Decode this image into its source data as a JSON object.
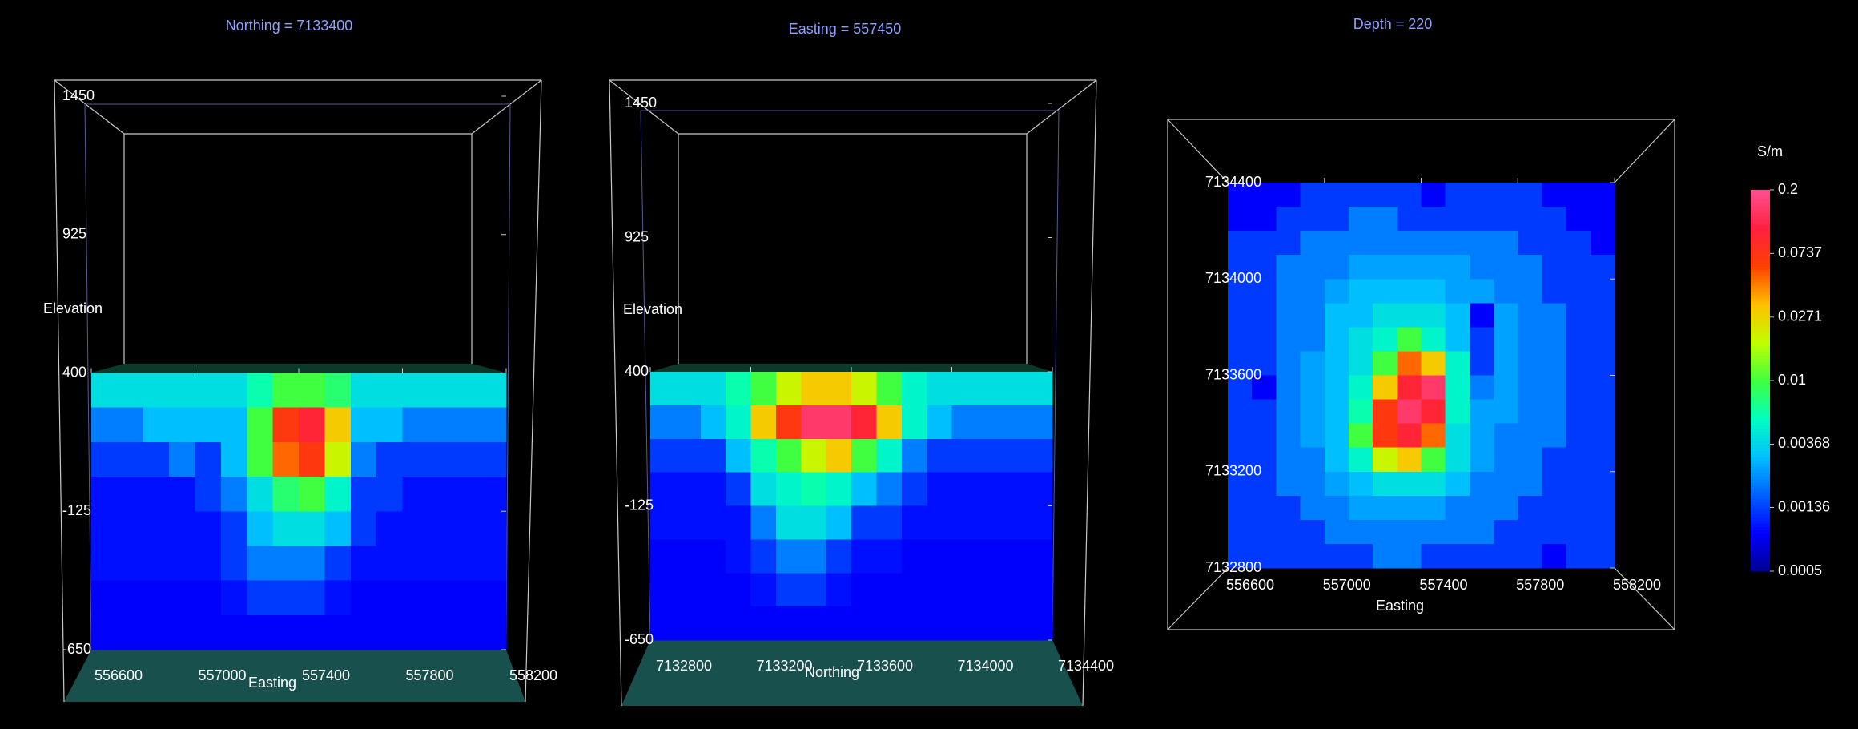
{
  "chart_data": [
    {
      "type": "heatmap",
      "title": "Northing =  7133400",
      "ylabel": "Elevation",
      "xlabel": "Easting",
      "xlim": [
        556600,
        558200
      ],
      "xticks": [
        556600,
        557000,
        557400,
        557800,
        558200
      ],
      "ylim": [
        -650,
        1450
      ],
      "yticks": [
        1450,
        925,
        400,
        -125,
        -650
      ],
      "data_ylim": [
        -650,
        400
      ],
      "z": [
        [
          0.004,
          0.004,
          0.004,
          0.004,
          0.004,
          0.004,
          0.006,
          0.01,
          0.01,
          0.008,
          0.004,
          0.004,
          0.004,
          0.004,
          0.004,
          0.004
        ],
        [
          0.002,
          0.002,
          0.003,
          0.003,
          0.003,
          0.003,
          0.01,
          0.07,
          0.1,
          0.03,
          0.003,
          0.003,
          0.002,
          0.002,
          0.002,
          0.002
        ],
        [
          0.0013,
          0.0013,
          0.0013,
          0.002,
          0.0013,
          0.003,
          0.01,
          0.05,
          0.07,
          0.02,
          0.002,
          0.0013,
          0.0013,
          0.0013,
          0.0013,
          0.0013
        ],
        [
          0.001,
          0.001,
          0.001,
          0.001,
          0.0013,
          0.002,
          0.004,
          0.008,
          0.01,
          0.005,
          0.0013,
          0.0013,
          0.001,
          0.001,
          0.001,
          0.001
        ],
        [
          0.001,
          0.001,
          0.001,
          0.001,
          0.001,
          0.0013,
          0.003,
          0.004,
          0.004,
          0.003,
          0.0013,
          0.001,
          0.001,
          0.001,
          0.001,
          0.001
        ],
        [
          0.001,
          0.001,
          0.001,
          0.001,
          0.001,
          0.0013,
          0.002,
          0.002,
          0.002,
          0.0013,
          0.001,
          0.001,
          0.001,
          0.001,
          0.001,
          0.001
        ],
        [
          0.0009,
          0.0009,
          0.0009,
          0.0009,
          0.0009,
          0.001,
          0.0013,
          0.0013,
          0.0013,
          0.001,
          0.0009,
          0.0009,
          0.0009,
          0.0009,
          0.0009,
          0.0009
        ],
        [
          0.0009,
          0.0009,
          0.0009,
          0.0009,
          0.0009,
          0.0009,
          0.0009,
          0.0009,
          0.0009,
          0.0009,
          0.0009,
          0.0009,
          0.0009,
          0.0009,
          0.0009,
          0.0009
        ]
      ]
    },
    {
      "type": "heatmap",
      "title": "Easting =  557450",
      "ylabel": "Elevation",
      "xlabel": "Northing",
      "xlim": [
        7132800,
        7134400
      ],
      "xticks": [
        7132800,
        7133200,
        7133600,
        7134000,
        7134400
      ],
      "ylim": [
        -650,
        1450
      ],
      "yticks": [
        1450,
        925,
        400,
        -125,
        -650
      ],
      "data_ylim": [
        -650,
        400
      ],
      "z": [
        [
          0.004,
          0.004,
          0.004,
          0.006,
          0.01,
          0.02,
          0.03,
          0.03,
          0.02,
          0.01,
          0.005,
          0.004,
          0.004,
          0.004,
          0.004,
          0.004
        ],
        [
          0.002,
          0.002,
          0.003,
          0.005,
          0.03,
          0.07,
          0.15,
          0.15,
          0.1,
          0.03,
          0.005,
          0.003,
          0.002,
          0.002,
          0.002,
          0.002
        ],
        [
          0.0013,
          0.0013,
          0.0013,
          0.003,
          0.006,
          0.01,
          0.02,
          0.03,
          0.01,
          0.005,
          0.002,
          0.0013,
          0.0013,
          0.0013,
          0.0013,
          0.0013
        ],
        [
          0.001,
          0.001,
          0.001,
          0.0013,
          0.004,
          0.005,
          0.006,
          0.005,
          0.003,
          0.002,
          0.0013,
          0.001,
          0.001,
          0.001,
          0.001,
          0.001
        ],
        [
          0.001,
          0.001,
          0.001,
          0.001,
          0.002,
          0.004,
          0.004,
          0.003,
          0.0013,
          0.0013,
          0.001,
          0.001,
          0.001,
          0.001,
          0.001,
          0.001
        ],
        [
          0.0009,
          0.0009,
          0.0009,
          0.001,
          0.0013,
          0.002,
          0.002,
          0.0013,
          0.001,
          0.001,
          0.0009,
          0.0009,
          0.0009,
          0.0009,
          0.0009,
          0.0009
        ],
        [
          0.0009,
          0.0009,
          0.0009,
          0.0009,
          0.001,
          0.0013,
          0.0013,
          0.001,
          0.0009,
          0.0009,
          0.0009,
          0.0009,
          0.0009,
          0.0009,
          0.0009,
          0.0009
        ],
        [
          0.0009,
          0.0009,
          0.0009,
          0.0009,
          0.0009,
          0.0009,
          0.0009,
          0.0009,
          0.0009,
          0.0009,
          0.0009,
          0.0009,
          0.0009,
          0.0009,
          0.0009,
          0.0009
        ]
      ]
    },
    {
      "type": "heatmap",
      "title": "Depth =  220",
      "xlabel": "Easting",
      "xlim": [
        556600,
        558200
      ],
      "xticks": [
        556600,
        557000,
        557400,
        557800,
        558200
      ],
      "ylim": [
        7132800,
        7134400
      ],
      "yticks": [
        7134400,
        7134000,
        7133600,
        7133200,
        7132800
      ],
      "z": [
        [
          0.0009,
          0.0009,
          0.0009,
          0.0013,
          0.0013,
          0.0013,
          0.0013,
          0.0013,
          0.0009,
          0.0013,
          0.0013,
          0.0013,
          0.0013,
          0.0009,
          0.0009,
          0.0009
        ],
        [
          0.0009,
          0.0009,
          0.0013,
          0.0013,
          0.0013,
          0.002,
          0.002,
          0.0013,
          0.0013,
          0.0013,
          0.0013,
          0.0013,
          0.0013,
          0.0013,
          0.0009,
          0.0009
        ],
        [
          0.0013,
          0.0013,
          0.0013,
          0.002,
          0.002,
          0.002,
          0.002,
          0.002,
          0.002,
          0.002,
          0.002,
          0.002,
          0.0013,
          0.0013,
          0.0013,
          0.0009
        ],
        [
          0.0013,
          0.0013,
          0.002,
          0.002,
          0.002,
          0.0025,
          0.0025,
          0.0025,
          0.0025,
          0.0025,
          0.002,
          0.002,
          0.002,
          0.0013,
          0.0013,
          0.0013
        ],
        [
          0.0013,
          0.0013,
          0.002,
          0.002,
          0.0025,
          0.003,
          0.003,
          0.003,
          0.003,
          0.0025,
          0.0025,
          0.002,
          0.002,
          0.0013,
          0.0013,
          0.0013
        ],
        [
          0.0013,
          0.0013,
          0.002,
          0.002,
          0.003,
          0.003,
          0.004,
          0.004,
          0.004,
          0.003,
          0.0009,
          0.0025,
          0.002,
          0.002,
          0.0013,
          0.0013
        ],
        [
          0.0013,
          0.0013,
          0.002,
          0.002,
          0.003,
          0.004,
          0.005,
          0.01,
          0.005,
          0.003,
          0.0013,
          0.0025,
          0.002,
          0.002,
          0.0013,
          0.0013
        ],
        [
          0.0013,
          0.0013,
          0.002,
          0.0025,
          0.003,
          0.004,
          0.01,
          0.05,
          0.03,
          0.005,
          0.0013,
          0.0025,
          0.002,
          0.002,
          0.0013,
          0.0013
        ],
        [
          0.0013,
          0.0009,
          0.002,
          0.0025,
          0.003,
          0.005,
          0.03,
          0.1,
          0.15,
          0.005,
          0.002,
          0.0025,
          0.002,
          0.002,
          0.0013,
          0.0013
        ],
        [
          0.0013,
          0.0013,
          0.002,
          0.0025,
          0.003,
          0.006,
          0.07,
          0.15,
          0.1,
          0.005,
          0.0025,
          0.0025,
          0.002,
          0.002,
          0.0013,
          0.0013
        ],
        [
          0.0013,
          0.0013,
          0.002,
          0.0025,
          0.003,
          0.01,
          0.07,
          0.1,
          0.05,
          0.004,
          0.0025,
          0.002,
          0.002,
          0.002,
          0.0013,
          0.0013
        ],
        [
          0.0013,
          0.0013,
          0.002,
          0.002,
          0.003,
          0.005,
          0.02,
          0.03,
          0.01,
          0.004,
          0.0025,
          0.002,
          0.002,
          0.0013,
          0.0013,
          0.0013
        ],
        [
          0.0013,
          0.0013,
          0.002,
          0.002,
          0.0025,
          0.003,
          0.004,
          0.004,
          0.004,
          0.003,
          0.002,
          0.002,
          0.002,
          0.0013,
          0.0013,
          0.0013
        ],
        [
          0.0013,
          0.0013,
          0.0013,
          0.002,
          0.002,
          0.0025,
          0.0025,
          0.0025,
          0.0025,
          0.002,
          0.002,
          0.002,
          0.0013,
          0.0013,
          0.0013,
          0.0013
        ],
        [
          0.0013,
          0.0013,
          0.0013,
          0.0013,
          0.002,
          0.002,
          0.002,
          0.002,
          0.002,
          0.002,
          0.002,
          0.0013,
          0.0013,
          0.0013,
          0.0013,
          0.0013
        ],
        [
          0.0013,
          0.0013,
          0.0013,
          0.0013,
          0.0013,
          0.0013,
          0.002,
          0.002,
          0.0013,
          0.0013,
          0.0013,
          0.0013,
          0.0013,
          0.0009,
          0.0013,
          0.0013
        ]
      ]
    },
    {
      "type": "colorbar",
      "label": "S/m",
      "lim": [
        0.0005,
        0.2
      ],
      "log": true,
      "ticks": [
        0.2,
        0.0737,
        0.0271,
        0.01,
        0.00368,
        0.00136,
        0.0005
      ],
      "colors": [
        "#000090",
        "#0000ff",
        "#0060ff",
        "#00c0ff",
        "#00ffc0",
        "#40ff40",
        "#c0ff00",
        "#ffc000",
        "#ff4000",
        "#ff2040",
        "#ff5090"
      ]
    }
  ]
}
